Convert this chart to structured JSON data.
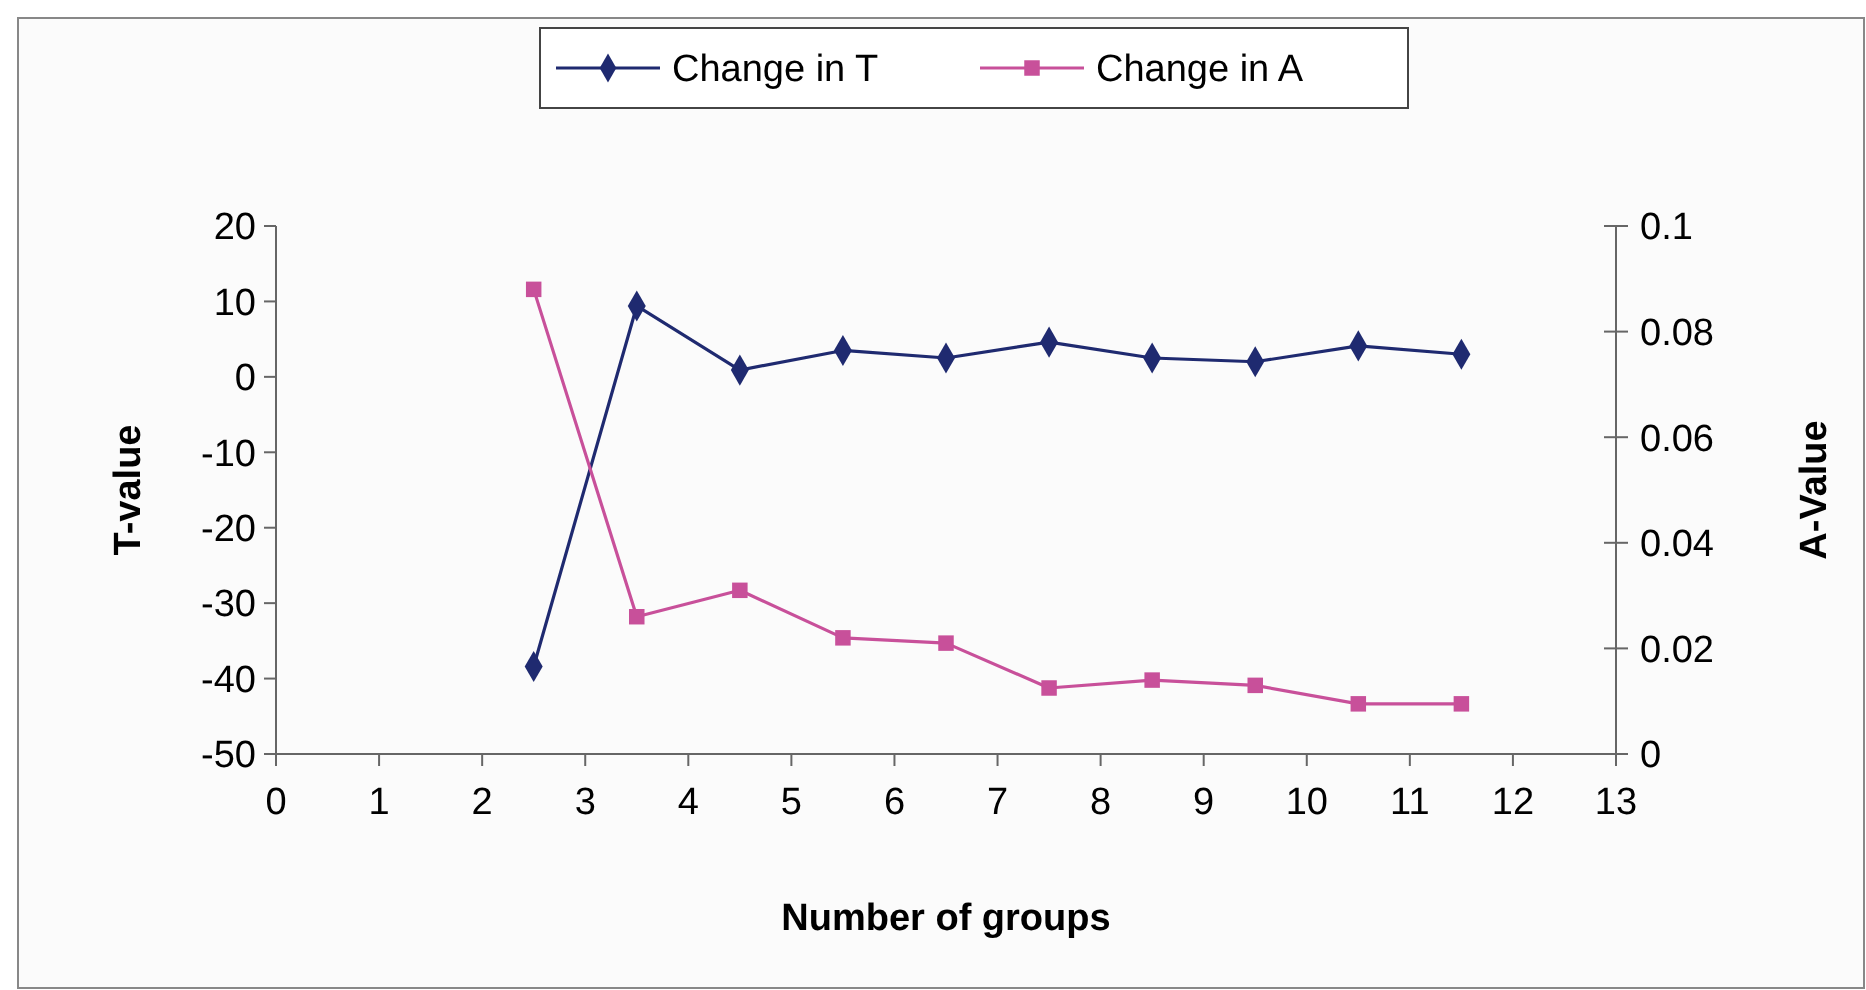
{
  "chart_data": {
    "type": "line",
    "xlabel": "Number of groups",
    "ylabel": "T-value",
    "y2label": "A-Value",
    "x": [
      2.5,
      3.5,
      4.5,
      5.5,
      6.5,
      7.5,
      8.5,
      9.5,
      10.5,
      11.5
    ],
    "series": [
      {
        "name": "Change in T",
        "color": "#1f2a70",
        "marker": "diamond",
        "values": [
          -38.4,
          9.4,
          0.9,
          3.5,
          2.5,
          4.6,
          2.5,
          2,
          4.1,
          3
        ]
      },
      {
        "name": "Change in A",
        "color": "#c8509a",
        "marker": "square",
        "axis": "y2",
        "values": [
          0.088,
          0.026,
          0.031,
          0.022,
          0.021,
          0.0125,
          0.014,
          0.013,
          0.0095,
          0.0095
        ]
      }
    ],
    "xlim": [
      0,
      13
    ],
    "xticks": [
      0,
      1,
      2,
      3,
      4,
      5,
      6,
      7,
      8,
      9,
      10,
      11,
      12,
      13
    ],
    "ylim": [
      -50,
      20
    ],
    "yticks": [
      -50,
      -40,
      -30,
      -20,
      -10,
      0,
      10,
      20
    ],
    "y2lim": [
      0,
      0.1
    ],
    "y2ticks": [
      0,
      0.02,
      0.04,
      0.06,
      0.08,
      0.1
    ],
    "legend": "top",
    "grid": false
  }
}
